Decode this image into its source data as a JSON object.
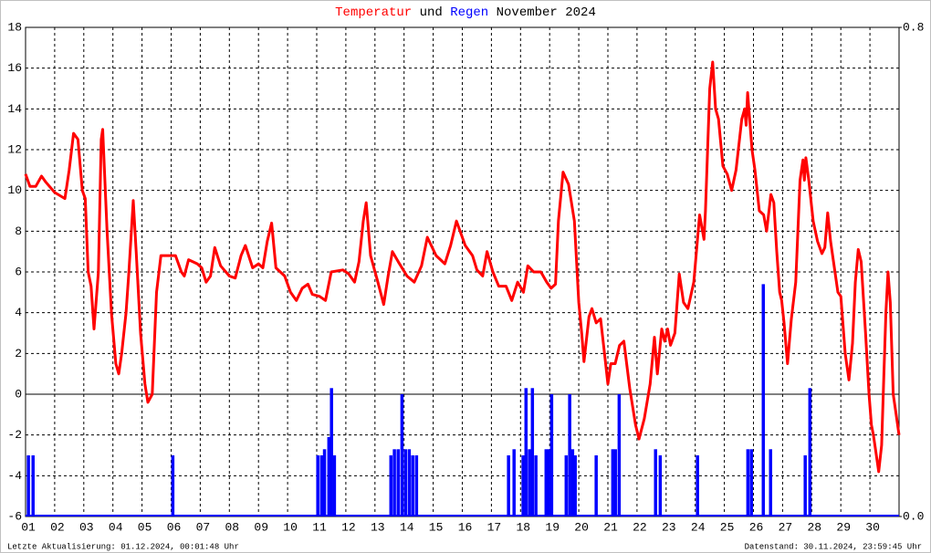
{
  "chart_data": {
    "type": "line",
    "title_parts": [
      "und",
      "November 2024"
    ],
    "footer_left": "Letzte Aktualisierung: 01.12.2024, 00:01:48 Uhr",
    "footer_right": "Datenstand: 30.11.2024, 23:59:45 Uhr",
    "xlim": [
      1,
      31
    ],
    "xticks": [
      {
        "value": 1,
        "label": "01"
      },
      {
        "value": 2,
        "label": "02"
      },
      {
        "value": 3,
        "label": "03"
      },
      {
        "value": 4,
        "label": "04"
      },
      {
        "value": 5,
        "label": "05"
      },
      {
        "value": 6,
        "label": "06"
      },
      {
        "value": 7,
        "label": "07"
      },
      {
        "value": 8,
        "label": "08"
      },
      {
        "value": 9,
        "label": "09"
      },
      10,
      11,
      12,
      13,
      14,
      15,
      16,
      17,
      18,
      19,
      20,
      21,
      22,
      23,
      24,
      25,
      26,
      27,
      28,
      29,
      30
    ],
    "ylim": [
      -6,
      18
    ],
    "yticks": [
      -6,
      -4,
      -2,
      0,
      2,
      4,
      6,
      8,
      10,
      12,
      14,
      16,
      18
    ],
    "y2lim": [
      0,
      0.8
    ],
    "y2ticks": [
      {
        "value": 0,
        "label": "0.0"
      },
      {
        "value": 0.8,
        "label": "0.8"
      }
    ],
    "grid": true,
    "series": [
      {
        "name": "Temperatur",
        "color": "#ff0000",
        "type": "line",
        "x": [
          1.0,
          1.15,
          1.35,
          1.55,
          1.7,
          2.0,
          2.35,
          2.5,
          2.65,
          2.8,
          2.95,
          3.05,
          3.15,
          3.25,
          3.35,
          3.5,
          3.6,
          3.65,
          3.8,
          3.95,
          4.1,
          4.2,
          4.3,
          4.45,
          4.55,
          4.7,
          4.8,
          4.95,
          5.1,
          5.2,
          5.35,
          5.5,
          5.65,
          5.9,
          6.15,
          6.35,
          6.45,
          6.6,
          6.9,
          7.05,
          7.2,
          7.35,
          7.5,
          7.7,
          8.0,
          8.2,
          8.4,
          8.55,
          8.8,
          9.0,
          9.15,
          9.3,
          9.45,
          9.6,
          9.9,
          10.1,
          10.3,
          10.5,
          10.7,
          10.85,
          11.1,
          11.3,
          11.5,
          11.9,
          12.1,
          12.3,
          12.45,
          12.6,
          12.7,
          12.85,
          13.1,
          13.3,
          13.45,
          13.6,
          13.8,
          14.1,
          14.35,
          14.6,
          14.8,
          15.1,
          15.4,
          15.6,
          15.8,
          16.1,
          16.35,
          16.5,
          16.7,
          16.85,
          17.05,
          17.25,
          17.5,
          17.7,
          17.9,
          18.1,
          18.25,
          18.45,
          18.7,
          18.9,
          19.05,
          19.2,
          19.3,
          19.46,
          19.65,
          19.85,
          20.0,
          20.1,
          20.18,
          20.35,
          20.45,
          20.6,
          20.75,
          20.9,
          21.0,
          21.1,
          21.25,
          21.4,
          21.55,
          21.75,
          21.95,
          22.07,
          22.25,
          22.45,
          22.6,
          22.7,
          22.85,
          22.95,
          23.05,
          23.15,
          23.3,
          23.45,
          23.6,
          23.75,
          23.95,
          24.15,
          24.3,
          24.35,
          24.5,
          24.6,
          24.7,
          24.8,
          24.95,
          25.1,
          25.25,
          25.4,
          25.6,
          25.7,
          25.75,
          25.8,
          25.95,
          26.05,
          26.2,
          26.35,
          26.45,
          26.6,
          26.7,
          26.8,
          26.9,
          26.97,
          27.05,
          27.17,
          27.3,
          27.45,
          27.6,
          27.7,
          27.75,
          27.8,
          27.9,
          28.05,
          28.2,
          28.35,
          28.45,
          28.55,
          28.65,
          28.8,
          28.9,
          29.0,
          29.15,
          29.28,
          29.4,
          29.5,
          29.6,
          29.7,
          29.85,
          29.97,
          30.05,
          30.12,
          30.2,
          30.3,
          30.4,
          30.48,
          30.55,
          30.62,
          30.7,
          30.8,
          30.88,
          31.0
        ],
        "values": [
          10.8,
          10.2,
          10.2,
          10.7,
          10.4,
          9.9,
          9.6,
          11,
          12.8,
          12.5,
          10,
          9.6,
          6,
          5.3,
          3.2,
          6,
          12.5,
          13,
          8,
          4,
          1.5,
          1,
          2,
          4,
          6,
          9.5,
          7,
          3,
          0.5,
          -0.4,
          0,
          5,
          6.8,
          6.8,
          6.8,
          6,
          5.8,
          6.6,
          6.4,
          6.2,
          5.5,
          5.8,
          7.2,
          6.3,
          5.8,
          5.7,
          6.8,
          7.3,
          6.2,
          6.4,
          6.2,
          7.5,
          8.4,
          6.2,
          5.8,
          5.0,
          4.6,
          5.2,
          5.4,
          4.9,
          4.8,
          4.6,
          6.0,
          6.1,
          5.9,
          5.5,
          6.5,
          8.5,
          9.4,
          6.8,
          5.5,
          4.4,
          5.8,
          7,
          6.5,
          5.8,
          5.5,
          6.3,
          7.7,
          6.8,
          6.4,
          7.3,
          8.5,
          7.3,
          6.8,
          6.1,
          5.8,
          7,
          6.0,
          5.3,
          5.3,
          4.6,
          5.5,
          5.0,
          6.3,
          6.0,
          6.0,
          5.5,
          5.2,
          5.4,
          8.5,
          10.9,
          10.3,
          8.5,
          4.5,
          3.0,
          1.6,
          3.8,
          4.2,
          3.5,
          3.7,
          1.8,
          0.5,
          1.5,
          1.5,
          2.4,
          2.6,
          0.3,
          -1.5,
          -2.2,
          -1.2,
          0.5,
          2.8,
          1.0,
          3.2,
          2.6,
          3.2,
          2.4,
          3.0,
          5.9,
          4.5,
          4.2,
          5.5,
          8.8,
          7.6,
          9.0,
          15.0,
          16.3,
          14.0,
          13.5,
          11.2,
          10.8,
          10.0,
          11.0,
          13.5,
          14.0,
          13.2,
          14.8,
          12.0,
          11.0,
          9.0,
          8.8,
          8.0,
          9.8,
          9.4,
          7.0,
          5.0,
          4.6,
          3.5,
          1.5,
          3.7,
          5.5,
          10.5,
          11.5,
          10.5,
          11.6,
          10.5,
          8.5,
          7.5,
          6.9,
          7.2,
          8.9,
          7.5,
          6.0,
          5.0,
          4.8,
          2.0,
          0.7,
          2.5,
          5.5,
          7.1,
          6.5,
          3.0,
          0.0,
          -1.5,
          -2.0,
          -2.8,
          -3.8,
          -2.5,
          1.0,
          4.0,
          6.0,
          4.5,
          0.0,
          -0.8,
          -2.0
        ]
      },
      {
        "name": "Regen",
        "color": "#0000ff",
        "type": "bar",
        "axis": "y2",
        "x": [
          1.09,
          1.25,
          6.05,
          11.03,
          11.16,
          11.26,
          11.41,
          11.5,
          11.6,
          13.54,
          13.66,
          13.79,
          13.92,
          14.04,
          14.17,
          14.29,
          14.42,
          17.58,
          17.77,
          18.08,
          18.18,
          18.3,
          18.4,
          18.52,
          18.87,
          18.96,
          19.06,
          19.56,
          19.68,
          19.78,
          19.87,
          20.59,
          21.16,
          21.25,
          21.38,
          22.63,
          22.79,
          24.07,
          25.8,
          25.92,
          26.33,
          26.58,
          27.77,
          27.93
        ],
        "values": [
          0.1,
          0.1,
          0.1,
          0.1,
          0.1,
          0.11,
          0.13,
          0.21,
          0.1,
          0.1,
          0.11,
          0.11,
          0.2,
          0.11,
          0.11,
          0.1,
          0.1,
          0.1,
          0.11,
          0.1,
          0.21,
          0.11,
          0.21,
          0.1,
          0.11,
          0.11,
          0.2,
          0.1,
          0.2,
          0.11,
          0.1,
          0.1,
          0.11,
          0.11,
          0.2,
          0.11,
          0.1,
          0.1,
          0.11,
          0.11,
          0.38,
          0.11,
          0.1,
          0.21
        ]
      }
    ]
  }
}
